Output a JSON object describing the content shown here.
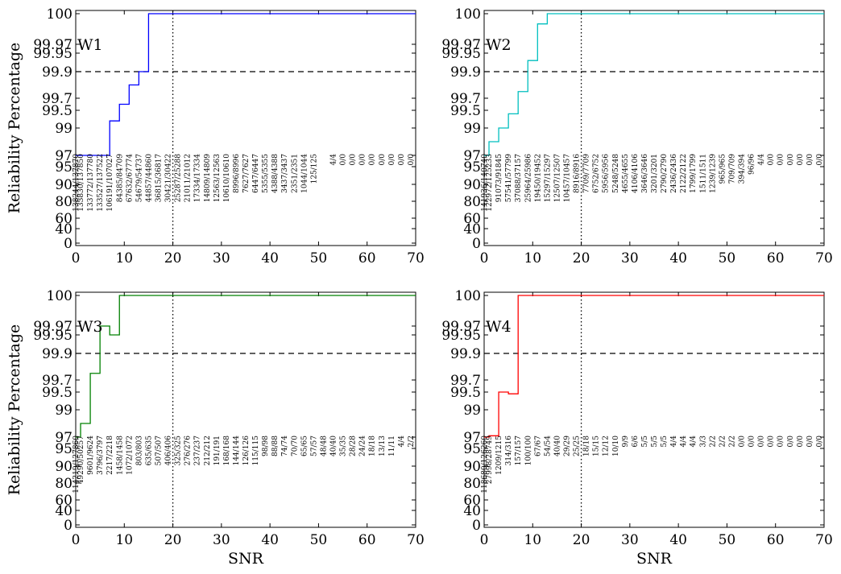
{
  "chart_data": [
    {
      "type": "line",
      "step": true,
      "label": "W1",
      "color": "#0000ff",
      "xlabel": "",
      "ylabel": "Reliability Percentage",
      "xlim": [
        0,
        70
      ],
      "x_ticks": [
        0,
        10,
        20,
        30,
        40,
        50,
        60,
        70
      ],
      "y_ticks": [
        "0",
        "40",
        "60",
        "80",
        "90",
        "95",
        "97",
        "99",
        "99.5",
        "99.7",
        "99.9",
        "99.95",
        "99.97",
        "100"
      ],
      "reference_lines": {
        "y": 99.9,
        "y_style": "dashed",
        "x": 20,
        "x_style": "dotted"
      },
      "series": [
        {
          "x": [
            0,
            1,
            3,
            5,
            7,
            9,
            11,
            13,
            15,
            70
          ],
          "y": [
            97.0,
            97.0,
            97.0,
            97.0,
            99.2,
            99.6,
            99.8,
            99.9,
            100.0,
            100.0
          ]
        }
      ],
      "annotations": [
        {
          "x": 0,
          "text": "138244/137870"
        },
        {
          "x": 1,
          "text": "133830/137850"
        },
        {
          "x": 3,
          "text": "133772/137780"
        },
        {
          "x": 5,
          "text": "133527/137522"
        },
        {
          "x": 7,
          "text": "106191/107027"
        },
        {
          "x": 9,
          "text": "84385/84709"
        },
        {
          "x": 11,
          "text": "67632/67774"
        },
        {
          "x": 13,
          "text": "54679/54737"
        },
        {
          "x": 15,
          "text": "44857/44860"
        },
        {
          "x": 17,
          "text": "36815/36817"
        },
        {
          "x": 19,
          "text": "30421/30422"
        },
        {
          "x": 21,
          "text": "25287/25288"
        },
        {
          "x": 23,
          "text": "21011/21012"
        },
        {
          "x": 25,
          "text": "17334/17334"
        },
        {
          "x": 27,
          "text": "14809/14809"
        },
        {
          "x": 29,
          "text": "12563/12563"
        },
        {
          "x": 31,
          "text": "10610/10610"
        },
        {
          "x": 33,
          "text": "8996/8996"
        },
        {
          "x": 35,
          "text": "7627/7627"
        },
        {
          "x": 37,
          "text": "6447/6447"
        },
        {
          "x": 39,
          "text": "5355/5355"
        },
        {
          "x": 41,
          "text": "4388/4388"
        },
        {
          "x": 43,
          "text": "3437/3437"
        },
        {
          "x": 45,
          "text": "2351/2351"
        },
        {
          "x": 47,
          "text": "1044/1044"
        },
        {
          "x": 49,
          "text": "125/125"
        },
        {
          "x": 53,
          "text": "4/4"
        },
        {
          "x": 55,
          "text": "0/0"
        },
        {
          "x": 57,
          "text": "0/0"
        },
        {
          "x": 59,
          "text": "0/0"
        },
        {
          "x": 61,
          "text": "0/0"
        },
        {
          "x": 63,
          "text": "0/0"
        },
        {
          "x": 65,
          "text": "0/0"
        },
        {
          "x": 67,
          "text": "0/0"
        },
        {
          "x": 69,
          "text": "0/0"
        }
      ]
    },
    {
      "type": "line",
      "step": true,
      "label": "W2",
      "color": "#00bfbf",
      "xlabel": "",
      "ylabel": "",
      "xlim": [
        0,
        70
      ],
      "x_ticks": [
        0,
        10,
        20,
        30,
        40,
        50,
        60,
        70
      ],
      "y_ticks": [
        "0",
        "40",
        "60",
        "80",
        "90",
        "95",
        "97",
        "99",
        "99.5",
        "99.7",
        "99.9",
        "99.95",
        "99.97",
        "100"
      ],
      "reference_lines": {
        "y": 99.9,
        "y_style": "dashed",
        "x": 20,
        "x_style": "dotted"
      },
      "series": [
        {
          "x": [
            0,
            1,
            3,
            5,
            7,
            9,
            11,
            13,
            70
          ],
          "y": [
            97.0,
            98.0,
            99.0,
            99.4,
            99.75,
            99.93,
            99.99,
            100.0,
            100.0
          ]
        }
      ],
      "annotations": [
        {
          "x": 0,
          "text": "141936/140740"
        },
        {
          "x": 1,
          "text": "122972/125233"
        },
        {
          "x": 3,
          "text": "91073/91845"
        },
        {
          "x": 5,
          "text": "57541/57799"
        },
        {
          "x": 7,
          "text": "37088/37157"
        },
        {
          "x": 9,
          "text": "25964/25986"
        },
        {
          "x": 11,
          "text": "19450/19452"
        },
        {
          "x": 13,
          "text": "15297/15297"
        },
        {
          "x": 15,
          "text": "12507/12507"
        },
        {
          "x": 17,
          "text": "10457/10457"
        },
        {
          "x": 19,
          "text": "8916/8916"
        },
        {
          "x": 21,
          "text": "7709/7709"
        },
        {
          "x": 23,
          "text": "6752/6752"
        },
        {
          "x": 25,
          "text": "5956/5956"
        },
        {
          "x": 27,
          "text": "5248/5248"
        },
        {
          "x": 29,
          "text": "4655/4655"
        },
        {
          "x": 31,
          "text": "4106/4106"
        },
        {
          "x": 33,
          "text": "3646/3646"
        },
        {
          "x": 35,
          "text": "3201/3201"
        },
        {
          "x": 37,
          "text": "2790/2790"
        },
        {
          "x": 39,
          "text": "2436/2436"
        },
        {
          "x": 41,
          "text": "2122/2122"
        },
        {
          "x": 43,
          "text": "1799/1799"
        },
        {
          "x": 45,
          "text": "1511/1511"
        },
        {
          "x": 47,
          "text": "1239/1239"
        },
        {
          "x": 49,
          "text": "965/965"
        },
        {
          "x": 51,
          "text": "709/709"
        },
        {
          "x": 53,
          "text": "394/394"
        },
        {
          "x": 55,
          "text": "96/96"
        },
        {
          "x": 57,
          "text": "4/4"
        },
        {
          "x": 59,
          "text": "0/0"
        },
        {
          "x": 61,
          "text": "0/0"
        },
        {
          "x": 63,
          "text": "0/0"
        },
        {
          "x": 65,
          "text": "0/0"
        },
        {
          "x": 67,
          "text": "0/0"
        },
        {
          "x": 69,
          "text": "0/0"
        }
      ]
    },
    {
      "type": "line",
      "step": true,
      "label": "W3",
      "color": "#008000",
      "xlabel": "SNR",
      "ylabel": "Reliability Percentage",
      "xlim": [
        0,
        70
      ],
      "x_ticks": [
        0,
        10,
        20,
        30,
        40,
        50,
        60,
        70
      ],
      "y_ticks": [
        "0",
        "40",
        "60",
        "80",
        "90",
        "95",
        "97",
        "99",
        "99.5",
        "99.7",
        "99.9",
        "99.95",
        "99.97",
        "100"
      ],
      "reference_lines": {
        "y": 99.9,
        "y_style": "dashed",
        "x": 20,
        "x_style": "dotted"
      },
      "series": [
        {
          "x": [
            0,
            1,
            3,
            5,
            7,
            9,
            70
          ],
          "y": [
            97.0,
            98.0,
            99.75,
            99.97,
            99.95,
            100.0,
            100.0
          ]
        }
      ],
      "annotations": [
        {
          "x": 0,
          "text": "114219/127860"
        },
        {
          "x": 1,
          "text": "49290/50257"
        },
        {
          "x": 3,
          "text": "9601/9624"
        },
        {
          "x": 5,
          "text": "3796/3797"
        },
        {
          "x": 7,
          "text": "2217/2218"
        },
        {
          "x": 9,
          "text": "1458/1458"
        },
        {
          "x": 11,
          "text": "1072/1072"
        },
        {
          "x": 13,
          "text": "803/803"
        },
        {
          "x": 15,
          "text": "635/635"
        },
        {
          "x": 17,
          "text": "507/507"
        },
        {
          "x": 19,
          "text": "406/406"
        },
        {
          "x": 21,
          "text": "325/325"
        },
        {
          "x": 23,
          "text": "276/276"
        },
        {
          "x": 25,
          "text": "237/237"
        },
        {
          "x": 27,
          "text": "212/212"
        },
        {
          "x": 29,
          "text": "191/191"
        },
        {
          "x": 31,
          "text": "168/168"
        },
        {
          "x": 33,
          "text": "144/144"
        },
        {
          "x": 35,
          "text": "126/126"
        },
        {
          "x": 37,
          "text": "115/115"
        },
        {
          "x": 39,
          "text": "98/98"
        },
        {
          "x": 41,
          "text": "88/88"
        },
        {
          "x": 43,
          "text": "74/74"
        },
        {
          "x": 45,
          "text": "70/70"
        },
        {
          "x": 47,
          "text": "65/65"
        },
        {
          "x": 49,
          "text": "57/57"
        },
        {
          "x": 51,
          "text": "48/48"
        },
        {
          "x": 53,
          "text": "40/40"
        },
        {
          "x": 55,
          "text": "35/35"
        },
        {
          "x": 57,
          "text": "28/28"
        },
        {
          "x": 59,
          "text": "24/24"
        },
        {
          "x": 61,
          "text": "18/18"
        },
        {
          "x": 63,
          "text": "13/13"
        },
        {
          "x": 65,
          "text": "11/11"
        },
        {
          "x": 67,
          "text": "4/4"
        },
        {
          "x": 69,
          "text": "2/2"
        }
      ]
    },
    {
      "type": "line",
      "step": true,
      "label": "W4",
      "color": "#ff0000",
      "xlabel": "SNR",
      "ylabel": "",
      "xlim": [
        0,
        70
      ],
      "x_ticks": [
        0,
        10,
        20,
        30,
        40,
        50,
        60,
        70
      ],
      "y_ticks": [
        "0",
        "40",
        "60",
        "80",
        "90",
        "95",
        "97",
        "99",
        "99.5",
        "99.7",
        "99.9",
        "99.95",
        "99.97",
        "100"
      ],
      "reference_lines": {
        "y": 99.9,
        "y_style": "dashed",
        "x": 20,
        "x_style": "dotted"
      },
      "series": [
        {
          "x": [
            0,
            1,
            3,
            5,
            7,
            70
          ],
          "y": [
            97.0,
            97.1,
            99.5,
            99.45,
            100.0,
            100.0
          ]
        }
      ],
      "annotations": [
        {
          "x": 0,
          "text": "118680/126260"
        },
        {
          "x": 1,
          "text": "27998/28749"
        },
        {
          "x": 3,
          "text": "1209/1215"
        },
        {
          "x": 5,
          "text": "314/316"
        },
        {
          "x": 7,
          "text": "157/157"
        },
        {
          "x": 9,
          "text": "100/100"
        },
        {
          "x": 11,
          "text": "67/67"
        },
        {
          "x": 13,
          "text": "54/54"
        },
        {
          "x": 15,
          "text": "40/40"
        },
        {
          "x": 17,
          "text": "29/29"
        },
        {
          "x": 19,
          "text": "25/25"
        },
        {
          "x": 21,
          "text": "18/18"
        },
        {
          "x": 23,
          "text": "15/15"
        },
        {
          "x": 25,
          "text": "12/12"
        },
        {
          "x": 27,
          "text": "10/10"
        },
        {
          "x": 29,
          "text": "9/9"
        },
        {
          "x": 31,
          "text": "6/6"
        },
        {
          "x": 33,
          "text": "5/5"
        },
        {
          "x": 35,
          "text": "5/5"
        },
        {
          "x": 37,
          "text": "5/5"
        },
        {
          "x": 39,
          "text": "4/4"
        },
        {
          "x": 41,
          "text": "4/4"
        },
        {
          "x": 43,
          "text": "4/4"
        },
        {
          "x": 45,
          "text": "3/3"
        },
        {
          "x": 47,
          "text": "2/2"
        },
        {
          "x": 49,
          "text": "2/2"
        },
        {
          "x": 51,
          "text": "2/2"
        },
        {
          "x": 53,
          "text": "0/0"
        },
        {
          "x": 55,
          "text": "0/0"
        },
        {
          "x": 57,
          "text": "0/0"
        },
        {
          "x": 59,
          "text": "0/0"
        },
        {
          "x": 61,
          "text": "0/0"
        },
        {
          "x": 63,
          "text": "0/0"
        },
        {
          "x": 65,
          "text": "0/0"
        },
        {
          "x": 67,
          "text": "0/0"
        },
        {
          "x": 69,
          "text": "0/0"
        }
      ]
    }
  ]
}
